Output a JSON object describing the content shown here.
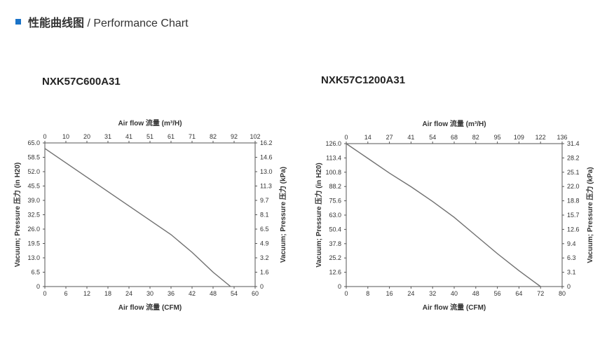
{
  "header": {
    "title_cn": "性能曲线图",
    "title_en": " / Performance Chart",
    "accent_color": "#1a73c8"
  },
  "chart_data": [
    {
      "type": "line",
      "title": "NXK57C600A31",
      "xlabel": "Air flow 流量 (CFM)",
      "x2label": "Air flow 流量 (m³/H)",
      "ylabel": "Vacuum; Pressure 压力 (in H20)",
      "y2label": "Vacuum; Pressure 压力 (kPa)",
      "xlim": [
        0,
        60
      ],
      "ylim": [
        0,
        65
      ],
      "x_ticks": [
        "0",
        "6",
        "12",
        "18",
        "24",
        "30",
        "36",
        "42",
        "48",
        "54",
        "60"
      ],
      "x2_ticks": [
        "0",
        "10",
        "20",
        "31",
        "41",
        "51",
        "61",
        "71",
        "82",
        "92",
        "102"
      ],
      "y_ticks": [
        "0",
        "6.5",
        "13.0",
        "19.5",
        "26.0",
        "32.5",
        "39.0",
        "45.5",
        "52.0",
        "58.5",
        "65.0"
      ],
      "y2_ticks": [
        "0",
        "1.6",
        "3.2",
        "4.9",
        "6.5",
        "8.1",
        "9.7",
        "11.3",
        "13.0",
        "14.6",
        "16.2"
      ],
      "grid": false,
      "line_color": "#707070",
      "series": [
        {
          "x": [
            0,
            6,
            12,
            18,
            24,
            30,
            36,
            42,
            45,
            48,
            53
          ],
          "y": [
            62.5,
            56,
            49.5,
            43,
            36.5,
            30,
            23.5,
            15.5,
            11,
            6.5,
            0
          ]
        }
      ]
    },
    {
      "type": "line",
      "title": "NXK57C1200A31",
      "xlabel": "Air flow 流量 (CFM)",
      "x2label": "Air flow 流量 (m³/H)",
      "ylabel": "Vacuum; Pressure 压力 (in H20)",
      "y2label": "Vacuum; Pressure 压力 (kPa)",
      "xlim": [
        0,
        80
      ],
      "ylim": [
        0,
        126
      ],
      "x_ticks": [
        "0",
        "8",
        "16",
        "24",
        "32",
        "40",
        "48",
        "56",
        "64",
        "72",
        "80"
      ],
      "x2_ticks": [
        "0",
        "14",
        "27",
        "41",
        "54",
        "68",
        "82",
        "95",
        "109",
        "122",
        "136"
      ],
      "y_ticks": [
        "0",
        "12.6",
        "25.2",
        "37.8",
        "50.4",
        "63.0",
        "75.6",
        "88.2",
        "100.8",
        "113.4",
        "126.0"
      ],
      "y2_ticks": [
        "0",
        "3.1",
        "6.3",
        "9.4",
        "12.6",
        "15.7",
        "18.8",
        "22.0",
        "25.1",
        "28.2",
        "31.4"
      ],
      "grid": false,
      "line_color": "#707070",
      "series": [
        {
          "x": [
            0,
            8,
            16,
            24,
            32,
            40,
            48,
            56,
            64,
            72
          ],
          "y": [
            126,
            113,
            100,
            88,
            75,
            61,
            45,
            29,
            14,
            0
          ]
        }
      ]
    }
  ]
}
